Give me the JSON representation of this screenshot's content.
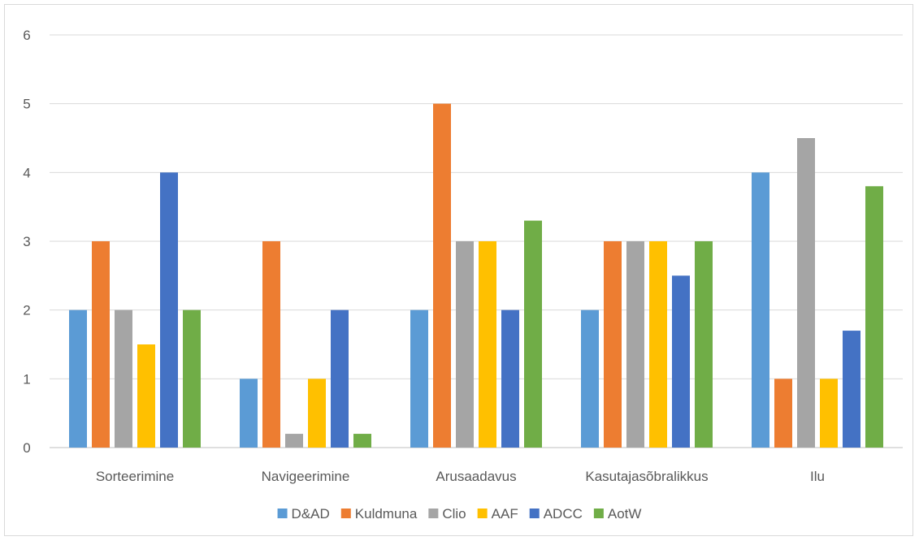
{
  "chart_data": {
    "type": "bar",
    "categories": [
      "Sorteerimine",
      "Navigeerimine",
      "Arusaadavus",
      "Kasutajasõbralikkus",
      "Ilu"
    ],
    "series": [
      {
        "name": "D&AD",
        "color": "#5b9bd5",
        "values": [
          2,
          1,
          2,
          2,
          4
        ]
      },
      {
        "name": "Kuldmuna",
        "color": "#ed7d31",
        "values": [
          3,
          3,
          5,
          3,
          1
        ]
      },
      {
        "name": "Clio",
        "color": "#a5a5a5",
        "values": [
          2,
          0.2,
          3,
          3,
          4.5
        ]
      },
      {
        "name": "AAF",
        "color": "#ffc000",
        "values": [
          1.5,
          1,
          3,
          3,
          1
        ]
      },
      {
        "name": "ADCC",
        "color": "#4472c4",
        "values": [
          4,
          2,
          2,
          2.5,
          1.7
        ]
      },
      {
        "name": "AotW",
        "color": "#70ad47",
        "values": [
          2,
          0.2,
          3.3,
          3,
          3.8
        ]
      }
    ],
    "ylim": [
      0,
      6
    ],
    "yticks": [
      "0",
      "1",
      "2",
      "3",
      "4",
      "5",
      "6"
    ],
    "title": "",
    "xlabel": "",
    "ylabel": "",
    "grid": true,
    "legend": "bottom"
  }
}
